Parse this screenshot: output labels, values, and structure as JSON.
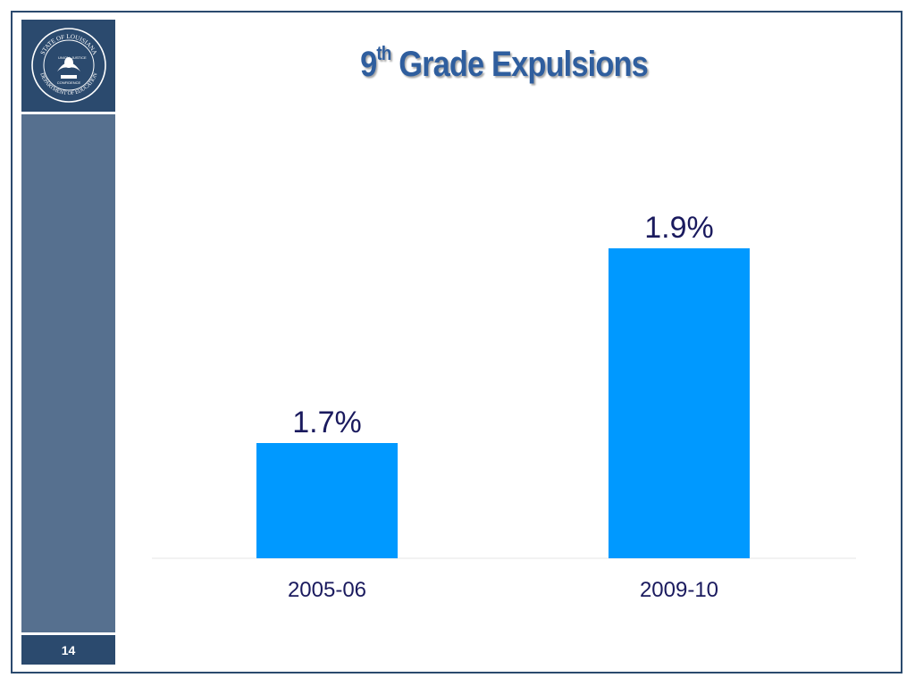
{
  "slide": {
    "title_number": "9",
    "title_superscript": "th",
    "title_text": "Grade Expulsions",
    "page_number": "14",
    "logo_text": {
      "top": "STATE OF LOUISIANA",
      "bottom": "DEPARTMENT OF EDUCATION",
      "motto_left": "UNION",
      "motto_right": "JUSTICE",
      "motto_bottom": "CONFIDENCE"
    }
  },
  "colors": {
    "bar": "#0099ff",
    "title": "#2f5e9e",
    "sidebar_dark": "#2b4a6e",
    "sidebar_light": "#56708f"
  },
  "chart_data": {
    "type": "bar",
    "categories": [
      "2005-06",
      "2009-10"
    ],
    "values": [
      1.7,
      1.9
    ],
    "value_labels": [
      "1.7%",
      "1.9%"
    ],
    "title": "9th Grade Expulsions",
    "xlabel": "",
    "ylabel": "",
    "ylim": [
      0,
      2.5
    ],
    "grid": false,
    "legend": "none"
  }
}
